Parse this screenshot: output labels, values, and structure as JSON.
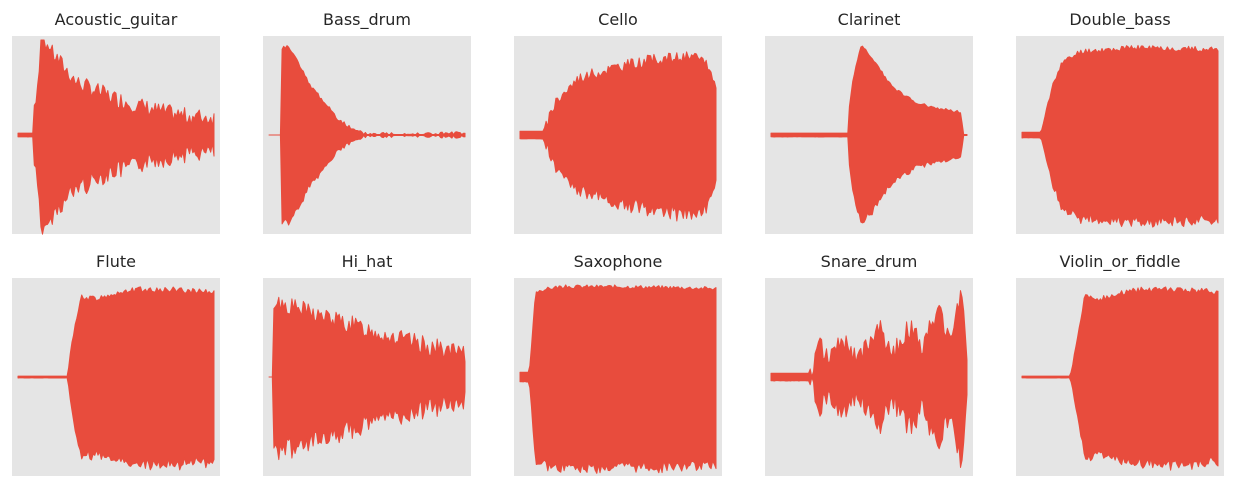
{
  "chart_data": [
    {
      "type": "area",
      "title": "Acoustic_guitar",
      "color": "#e84c3d",
      "background": "#e5e5e5",
      "grid": false,
      "axes_visible": false,
      "shape": "pluck-decay"
    },
    {
      "type": "area",
      "title": "Bass_drum",
      "color": "#e84c3d",
      "background": "#e5e5e5",
      "grid": false,
      "axes_visible": false,
      "shape": "fast-decay"
    },
    {
      "type": "area",
      "title": "Cello",
      "color": "#e84c3d",
      "background": "#e5e5e5",
      "grid": false,
      "axes_visible": false,
      "shape": "bowed-swell"
    },
    {
      "type": "area",
      "title": "Clarinet",
      "color": "#e84c3d",
      "background": "#e5e5e5",
      "grid": false,
      "axes_visible": false,
      "shape": "attack-peak-taper"
    },
    {
      "type": "area",
      "title": "Double_bass",
      "color": "#e84c3d",
      "background": "#e5e5e5",
      "grid": false,
      "axes_visible": false,
      "shape": "sustained-full"
    },
    {
      "type": "area",
      "title": "Flute",
      "color": "#e84c3d",
      "background": "#e5e5e5",
      "grid": false,
      "axes_visible": false,
      "shape": "late-onset-sustain"
    },
    {
      "type": "area",
      "title": "Hi_hat",
      "color": "#e84c3d",
      "background": "#e5e5e5",
      "grid": false,
      "axes_visible": false,
      "shape": "noisy-slow-decay"
    },
    {
      "type": "area",
      "title": "Saxophone",
      "color": "#e84c3d",
      "background": "#e5e5e5",
      "grid": false,
      "axes_visible": false,
      "shape": "flat-sustain"
    },
    {
      "type": "area",
      "title": "Snare_drum",
      "color": "#e84c3d",
      "background": "#e5e5e5",
      "grid": false,
      "axes_visible": false,
      "shape": "repeated-hits"
    },
    {
      "type": "area",
      "title": "Violin_or_fiddle",
      "color": "#e84c3d",
      "background": "#e5e5e5",
      "grid": false,
      "axes_visible": false,
      "shape": "late-onset-sustain"
    }
  ]
}
